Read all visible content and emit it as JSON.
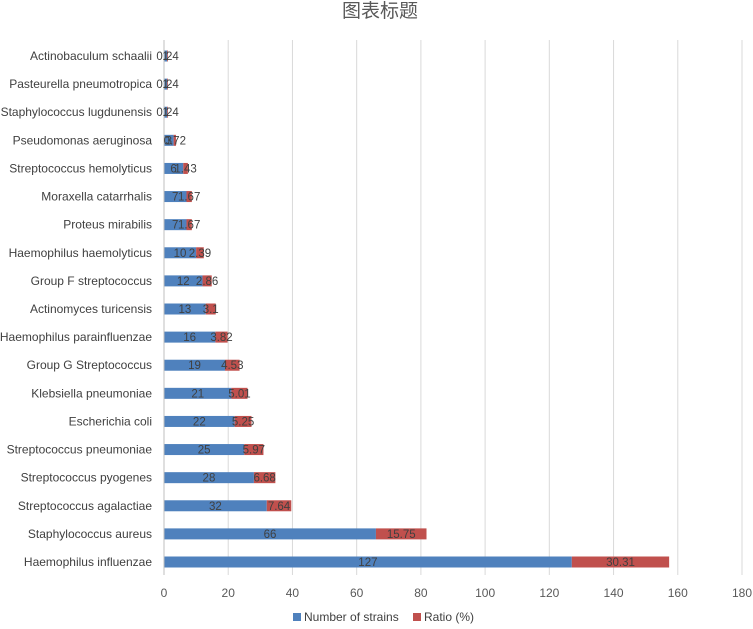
{
  "chart_data": {
    "type": "bar",
    "orientation": "horizontal",
    "stacked": true,
    "title": "图表标题",
    "xlabel": "",
    "ylabel": "",
    "xlim": [
      0,
      180
    ],
    "xticks": [
      0,
      20,
      40,
      60,
      80,
      100,
      120,
      140,
      160,
      180
    ],
    "grid": "vertical",
    "legend_position": "bottom",
    "categories": [
      "Actinobaculum schaalii",
      "Pasteurella pneumotropica",
      "Staphylococcus lugdunensis",
      "Pseudomonas aeruginosa",
      "Streptococcus hemolyticus",
      "Moraxella catarrhalis",
      "Proteus mirabilis",
      "Haemophilus haemolyticus",
      "Group F streptococcus",
      "Actinomyces turicensis",
      "Haemophilus parainfluenzae",
      "Group G Streptococcus",
      "Klebsiella pneumoniae",
      "Escherichia coli",
      "Streptococcus pneumoniae",
      "Streptococcus pyogenes",
      "Streptococcus agalactiae",
      "Staphylococcus aureus",
      "Haemophilus influenzae"
    ],
    "series": [
      {
        "name": "Number of strains",
        "color": "#4F81BD",
        "values": [
          1,
          1,
          1,
          3,
          6,
          7,
          7,
          10,
          12,
          13,
          16,
          19,
          21,
          22,
          25,
          28,
          32,
          66,
          127
        ],
        "labels": [
          "1",
          "1",
          "1",
          "3",
          "6",
          "7",
          "7",
          "10",
          "12",
          "13",
          "16",
          "19",
          "21",
          "22",
          "25",
          "28",
          "32",
          "66",
          "127"
        ]
      },
      {
        "name": "Ratio (%)",
        "color": "#C0504D",
        "values": [
          0.24,
          0.24,
          0.24,
          0.72,
          1.43,
          1.67,
          1.67,
          2.39,
          2.86,
          3.1,
          3.82,
          4.53,
          5.01,
          5.25,
          5.97,
          6.68,
          7.64,
          15.75,
          30.31
        ],
        "labels": [
          "0.24",
          "0.24",
          "0.24",
          "0.72",
          "1.43",
          "1.67",
          "1.67",
          "2.39",
          "2.86",
          "3.1",
          "3.82",
          "4.53",
          "5.01",
          "5.25",
          "5.97",
          "6.68",
          "7.64",
          "15.75",
          "30.31"
        ]
      }
    ]
  }
}
